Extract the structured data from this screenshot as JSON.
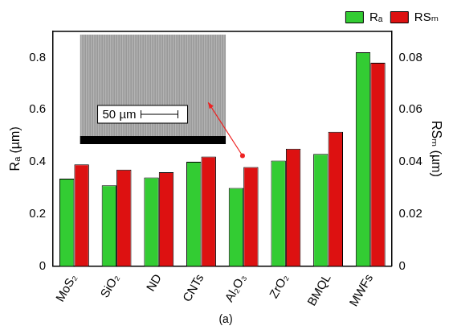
{
  "chart_data": {
    "type": "bar",
    "subtitle": "(a)",
    "y_label": "Rₐ (µm)",
    "y2_label": "RSₘ (µm)",
    "annotations": [
      "50 µm"
    ],
    "categories": [
      "MoS₂",
      "SiO₂",
      "ND",
      "CNTs",
      "Al₂O₃",
      "ZrO₂",
      "BMQL",
      "MWFs"
    ],
    "series": [
      {
        "name": "Rₐ",
        "color": "#33cc33",
        "values": [
          0.335,
          0.31,
          0.34,
          0.4,
          0.3,
          0.405,
          0.43,
          0.82
        ]
      },
      {
        "name": "RSₘ",
        "color": "#dd1111",
        "axis": "y2",
        "values": [
          0.039,
          0.037,
          0.036,
          0.042,
          0.038,
          0.045,
          0.0515,
          0.078
        ]
      }
    ],
    "ylim": [
      0,
      0.9
    ],
    "yticks": [
      0,
      0.2,
      0.4,
      0.6,
      0.8
    ],
    "y2lim": [
      0,
      0.09
    ],
    "y2ticks": [
      0,
      0.02,
      0.04,
      0.06,
      0.08
    ],
    "grid": false,
    "legend": "upper right"
  }
}
